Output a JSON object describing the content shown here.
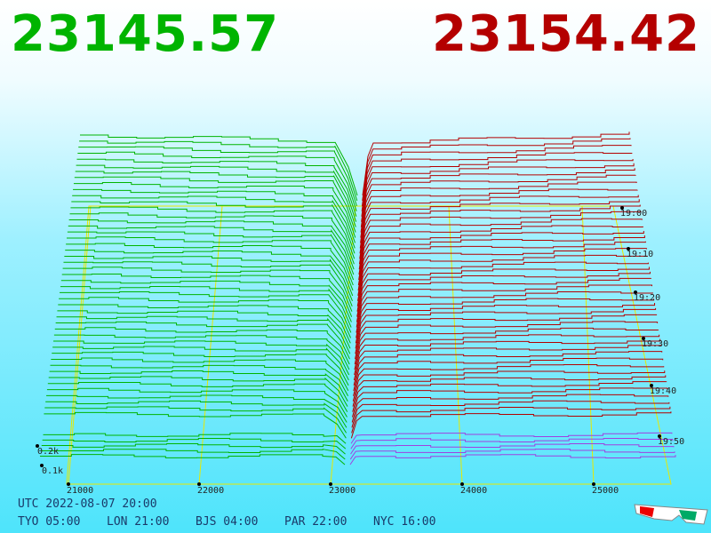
{
  "bid": "23145.57",
  "ask": "23154.42",
  "price_ticks": [
    "21000",
    "22000",
    "23000",
    "24000",
    "25000"
  ],
  "time_ticks": [
    "19:00",
    "19:10",
    "19:20",
    "19:30",
    "19:40",
    "19:50"
  ],
  "volume_ticks": [
    "0.2k",
    "0.1k"
  ],
  "utc": "UTC 2022-08-07 20:00",
  "cities": [
    "TYO 05:00",
    "LON 21:00",
    "BJS 04:00",
    "PAR 22:00",
    "NYC 16:00"
  ]
}
